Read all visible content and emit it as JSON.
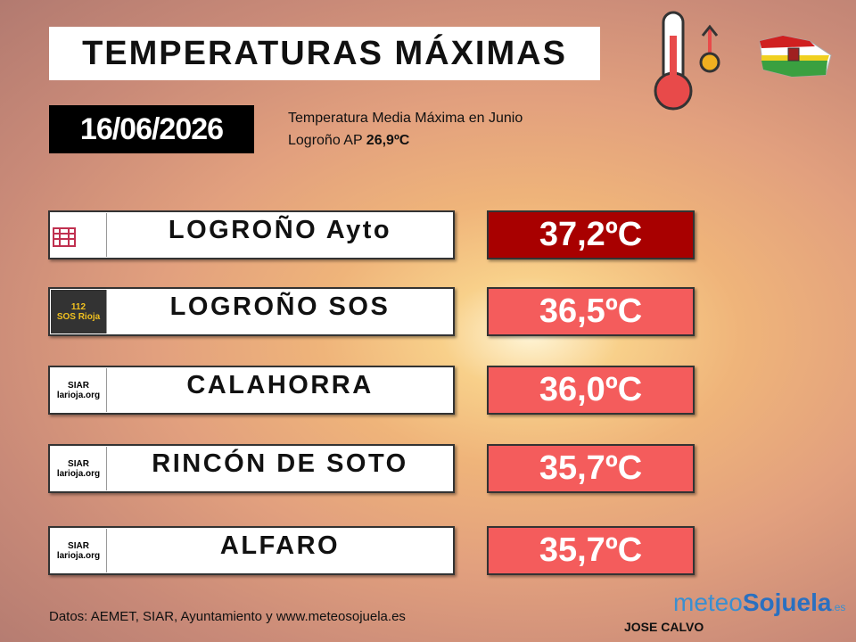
{
  "header": {
    "title": "TEMPERATURAS MÁXIMAS",
    "date": "16/06/2026",
    "note": {
      "line1": "Temperatura Media Máxima en Junio",
      "place": "Logroño AP",
      "value": "26,9ºC"
    }
  },
  "stations": [
    {
      "logo": [],
      "name": "LOGROÑO Ayto",
      "temp": "37,2ºC",
      "level": "top"
    },
    {
      "logo": [
        "112",
        "SOS Rioja"
      ],
      "name": "LOGROÑO SOS",
      "temp": "36,5ºC",
      "level": "high"
    },
    {
      "logo": [
        "SIAR",
        "larioja.org"
      ],
      "name": "CALAHORRA",
      "temp": "36,0ºC",
      "level": "high"
    },
    {
      "logo": [
        "SIAR",
        "larioja.org"
      ],
      "name": "RINCÓN DE SOTO",
      "temp": "35,7ºC",
      "level": "high"
    },
    {
      "logo": [
        "SIAR",
        "larioja.org"
      ],
      "name": "ALFARO",
      "temp": "35,7ºC",
      "level": "high"
    }
  ],
  "footer": {
    "sources": "Datos: AEMET, SIAR, Ayuntamiento y www.meteosojuela.es",
    "author": "JOSE CALVO",
    "brand": {
      "a": "meteo",
      "b": "Sojuela",
      "c": ".es"
    }
  }
}
